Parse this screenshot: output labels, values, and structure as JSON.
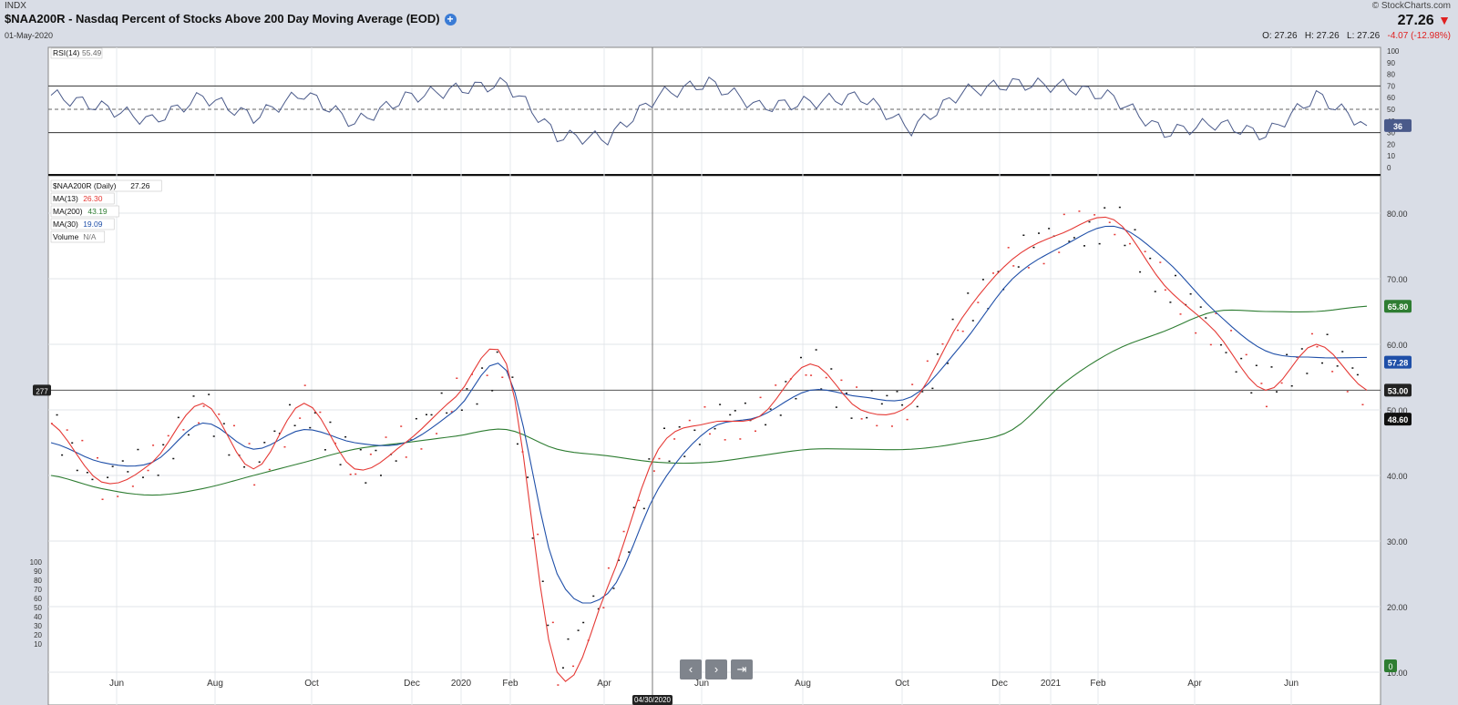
{
  "header": {
    "exchange": "INDX",
    "title": "$NAA200R - Nasdaq Percent of Stocks Above 200 Day Moving Average (EOD)",
    "date": "01-May-2020",
    "brand": "© StockCharts.com",
    "last_price": "27.26",
    "open": "O: 27.26",
    "high": "H: 27.26",
    "low": "L: 27.26",
    "change": "-4.07 (-12.98%)"
  },
  "rsi_panel": {
    "legend_name": "RSI(14)",
    "legend_value": "55.49",
    "current_badge": "36",
    "axis_ticks": [
      "100",
      "90",
      "80",
      "70",
      "60",
      "50",
      "40",
      "30",
      "20",
      "10",
      "0"
    ]
  },
  "price_panel": {
    "legend": [
      {
        "name": "$NAA200R (Daily)",
        "value": "27.26",
        "color": "#111111"
      },
      {
        "name": "MA(13)",
        "value": "26.30",
        "color": "#e53935"
      },
      {
        "name": "MA(200)",
        "value": "43.19",
        "color": "#2e7d32"
      },
      {
        "name": "MA(30)",
        "value": "19.09",
        "color": "#1f4fa8"
      },
      {
        "name": "Volume",
        "value": "N/A",
        "color": "#777777"
      }
    ],
    "axis_ticks": [
      "80.00",
      "70.00",
      "60.00",
      "50.00",
      "40.00",
      "30.00",
      "20.00",
      "10.00"
    ],
    "badges": {
      "ma200": "65.80",
      "ma30": "57.28",
      "crosshair": "53.00",
      "last": "48.60",
      "volume": "0"
    },
    "crosshair_label_left": "277",
    "volume_ticks": [
      "100",
      "90",
      "80",
      "70",
      "60",
      "50",
      "40",
      "30",
      "20",
      "10"
    ]
  },
  "x_axis": {
    "labels": [
      "Jun",
      "Aug",
      "Oct",
      "Dec",
      "2020",
      "Feb",
      "Apr",
      "Jun",
      "Aug",
      "Oct",
      "Dec",
      "2021",
      "Feb",
      "Apr",
      "Jun"
    ],
    "crosshair_date": "04/30/2020"
  },
  "nav": {
    "prev": "‹",
    "next": "›",
    "last": "⇥"
  },
  "colors": {
    "ma13": "#e53935",
    "ma30": "#1f4fa8",
    "ma200": "#2e7d32",
    "rsi": "#4a5a8a",
    "rsi_fill": "#5f8a85",
    "badge_dark": "#1c1c1c"
  },
  "chart_data": {
    "type": "line",
    "title": "$NAA200R - Nasdaq Percent of Stocks Above 200 Day Moving Average (EOD)",
    "x": [
      "2019-05",
      "2019-06",
      "2019-07",
      "2019-08",
      "2019-09",
      "2019-10",
      "2019-11",
      "2019-12",
      "2020-01",
      "2020-02",
      "2020-03",
      "2020-04",
      "2020-05",
      "2020-06",
      "2020-07",
      "2020-08",
      "2020-09",
      "2020-10",
      "2020-11",
      "2020-12",
      "2021-01",
      "2021-02",
      "2021-03",
      "2021-04",
      "2021-05",
      "2021-06",
      "2021-07"
    ],
    "ylim": [
      5,
      85
    ],
    "series": [
      {
        "name": "MA(13)",
        "values": [
          48,
          39,
          42,
          51,
          41,
          51,
          41,
          45,
          52,
          57,
          10,
          23,
          44,
          48,
          49,
          57,
          50,
          51,
          64,
          73,
          77,
          79,
          69,
          62,
          53,
          60,
          53
        ]
      },
      {
        "name": "MA(30)",
        "values": [
          45,
          42,
          42,
          48,
          44,
          47,
          45,
          45,
          50,
          56,
          25,
          22,
          38,
          47,
          49,
          53,
          52,
          52,
          60,
          70,
          75,
          78,
          73,
          65,
          59,
          58,
          58
        ]
      },
      {
        "name": "MA(200)",
        "values": [
          40,
          38,
          37,
          38,
          40,
          42,
          44,
          45,
          46,
          47,
          44,
          43,
          42,
          42,
          43,
          44,
          44,
          44,
          45,
          47,
          54,
          59,
          62,
          65,
          65,
          65,
          65.8
        ]
      }
    ],
    "rsi": {
      "name": "RSI(14)",
      "ylim": [
        0,
        100
      ],
      "overbought": 70,
      "oversold": 30,
      "midline": 50,
      "values": [
        62,
        52,
        40,
        61,
        43,
        64,
        38,
        60,
        67,
        72,
        27,
        25,
        62,
        73,
        52,
        56,
        61,
        33,
        65,
        72,
        70,
        60,
        30,
        38,
        28,
        62,
        36
      ]
    }
  }
}
